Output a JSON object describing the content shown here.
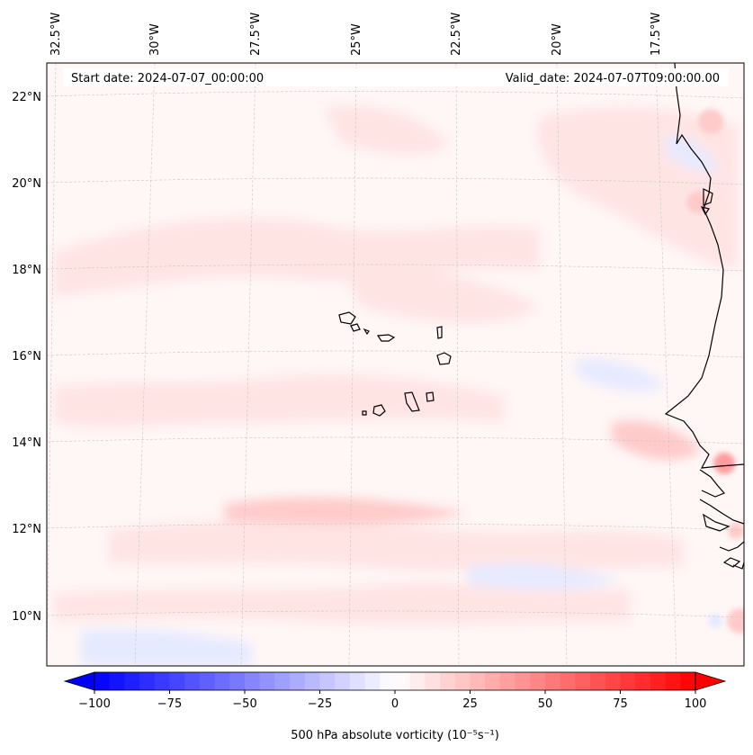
{
  "map": {
    "header": {
      "start": "Start date: 2024-07-07_00:00:00",
      "valid": "Valid_date: 2024-07-07T09:00:00.00"
    },
    "top_labels": [
      "32.5°W",
      "30°W",
      "27.5°W",
      "25°W",
      "22.5°W",
      "20°W",
      "17.5°W"
    ],
    "left_labels": [
      "22°N",
      "20°N",
      "18°N",
      "16°N",
      "14°N",
      "12°N",
      "10°N"
    ],
    "field_colors": {
      "background": "#fff6f6",
      "weak_pos": "#ffe4e4",
      "mod_pos": "#ffcaca",
      "strong_pos": "#ff9d9d",
      "weak_neg": "#e6eaff",
      "coast": "#000000"
    }
  },
  "colorbar": {
    "label": "500 hPa absolute vorticity (10⁻⁵s⁻¹)",
    "ticks": [
      "−100",
      "−75",
      "−50",
      "−25",
      "0",
      "25",
      "50",
      "75",
      "100"
    ],
    "min": -100,
    "max": 100,
    "step": 5,
    "neg_color": "#0000ff",
    "pos_color": "#ff0000",
    "mid_color": "#ffffff"
  }
}
